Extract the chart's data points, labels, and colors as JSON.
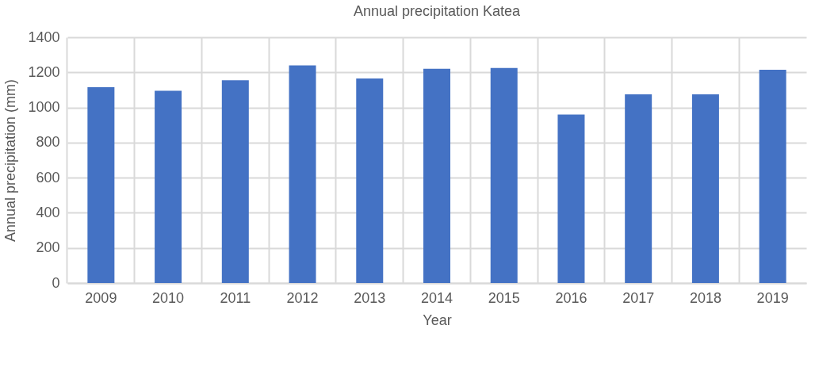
{
  "chart_data": {
    "type": "bar",
    "title": "Annual precipitation Katea",
    "xlabel": "Year",
    "ylabel": "Annual precipitation (mm)",
    "categories": [
      "2009",
      "2010",
      "2011",
      "2012",
      "2013",
      "2014",
      "2015",
      "2016",
      "2017",
      "2018",
      "2019"
    ],
    "values": [
      1115,
      1095,
      1155,
      1240,
      1165,
      1220,
      1225,
      960,
      1075,
      1075,
      1215
    ],
    "color": "#4472c4",
    "ylim": [
      0,
      1400
    ],
    "yticks": [
      0,
      200,
      400,
      600,
      800,
      1000,
      1200,
      1400
    ],
    "grid": true
  }
}
